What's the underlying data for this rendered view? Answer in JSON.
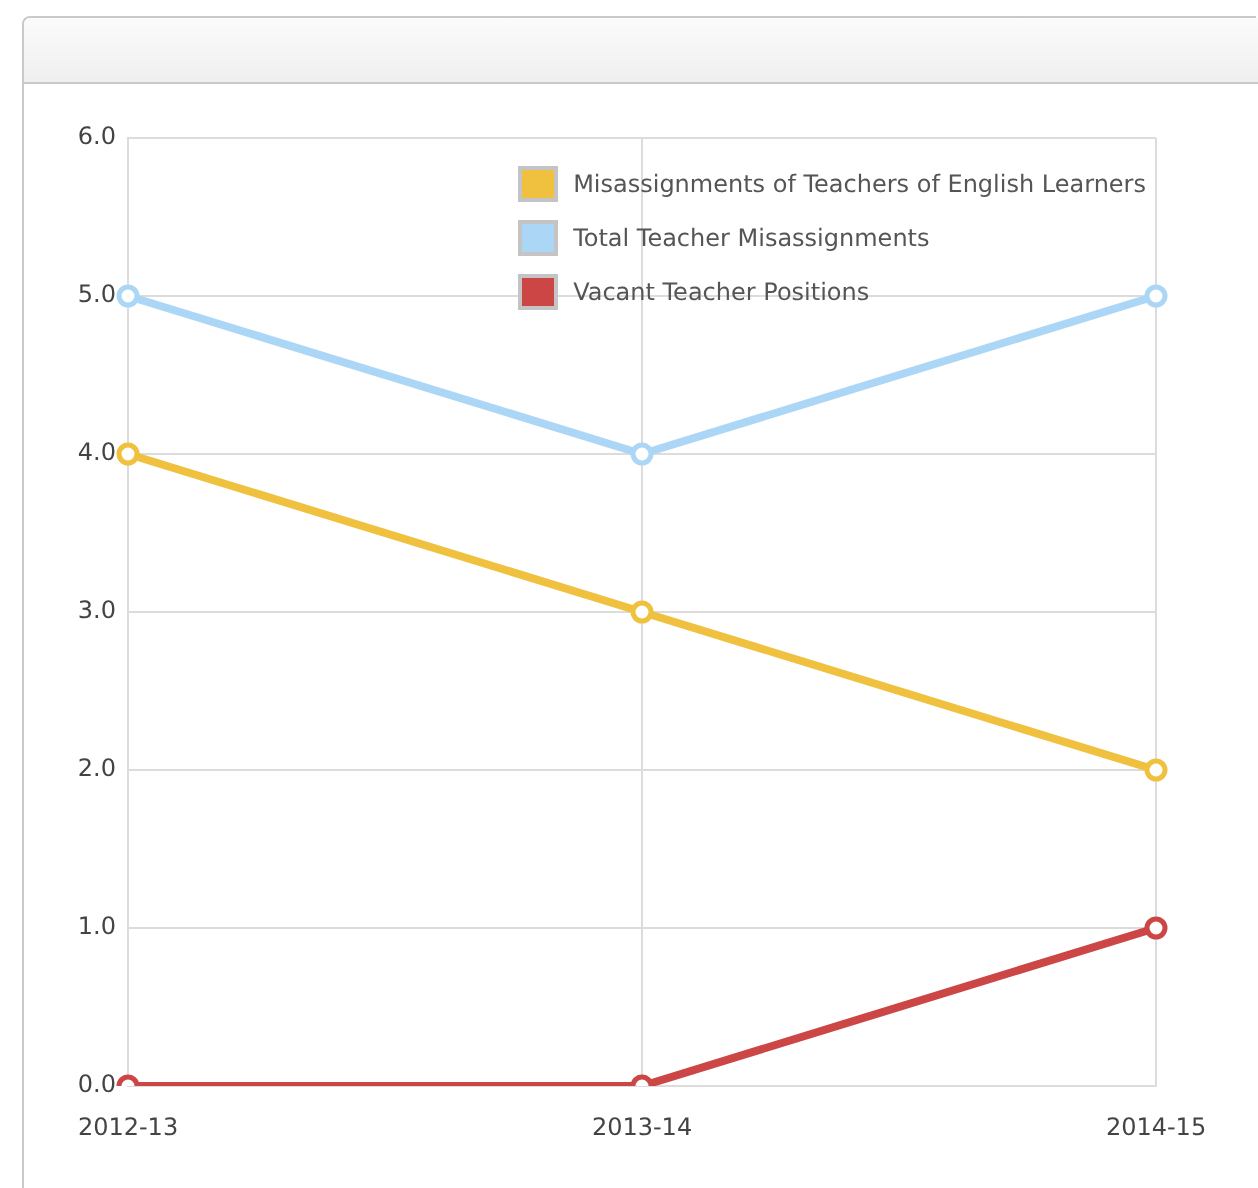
{
  "chart_data": {
    "type": "line",
    "categories": [
      "2012-13",
      "2013-14",
      "2014-15"
    ],
    "series": [
      {
        "name": "Misassignments of Teachers of English Learners",
        "color": "#efc13f",
        "values": [
          4,
          3,
          2
        ]
      },
      {
        "name": "Total Teacher Misassignments",
        "color": "#acd6f6",
        "values": [
          5,
          4,
          5
        ]
      },
      {
        "name": "Vacant Teacher Positions",
        "color": "#cc4646",
        "values": [
          0,
          0,
          1
        ]
      }
    ],
    "ylim": [
      0,
      6
    ],
    "yticks": [
      {
        "value": 0,
        "label": "0.0"
      },
      {
        "value": 1,
        "label": "1.0"
      },
      {
        "value": 2,
        "label": "2.0"
      },
      {
        "value": 3,
        "label": "3.0"
      },
      {
        "value": 4,
        "label": "4.0"
      },
      {
        "value": 5,
        "label": "5.0"
      },
      {
        "value": 6,
        "label": "6.0"
      }
    ],
    "grid": true,
    "legend": "top right",
    "marker": "circle",
    "line_style": "solid"
  }
}
